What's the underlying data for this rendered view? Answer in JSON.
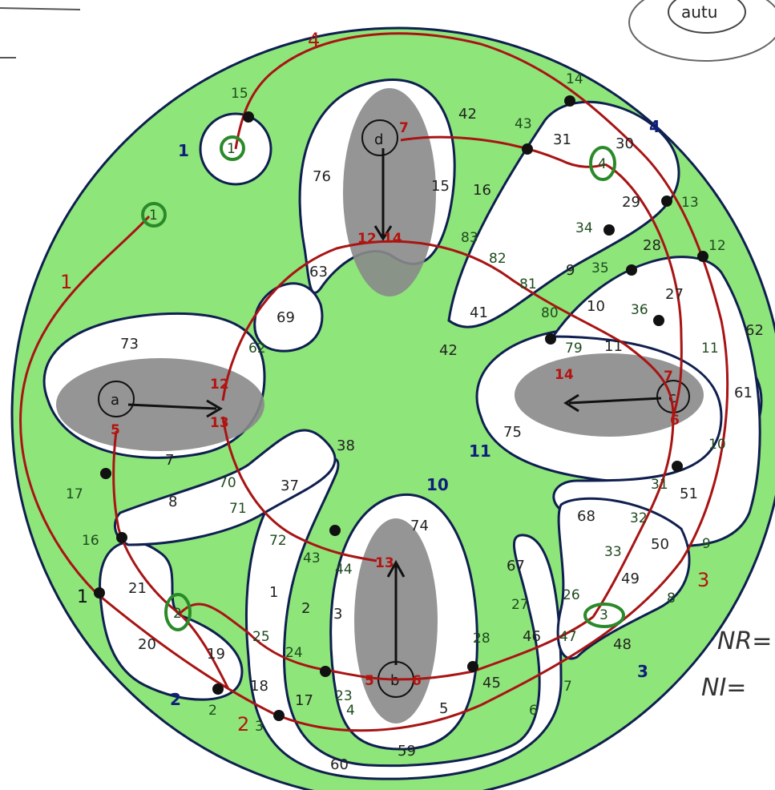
{
  "colors": {
    "disc_fill": "#8ee57a",
    "region_fill": "#ffffff",
    "shade_fill": "#8a8a8a",
    "blue_curve": "#0f1f4f",
    "red_curve": "#a81414",
    "green_ring": "#2a8a2a"
  },
  "corner": {
    "top_right_label": "autu",
    "right_text_1": "NR=",
    "right_text_2": "NI="
  },
  "punctures": {
    "a": "a",
    "b": "b",
    "c": "c",
    "d": "d"
  },
  "green_rings": [
    "1",
    "1",
    "2",
    "3",
    "4"
  ],
  "labels": {
    "blue": [
      "1",
      "2",
      "3",
      "4",
      "10",
      "11",
      "1",
      "2",
      "3",
      "4"
    ],
    "red_big": [
      "1",
      "2",
      "3",
      "4"
    ],
    "red_small": [
      "12",
      "13",
      "5",
      "5",
      "6",
      "6",
      "7",
      "7",
      "12",
      "13",
      "14",
      "14"
    ],
    "region": [
      "73",
      "76",
      "42",
      "16",
      "15",
      "31",
      "30",
      "29",
      "28",
      "27",
      "9",
      "10",
      "11",
      "75",
      "74",
      "1",
      "2",
      "3",
      "17",
      "18",
      "19",
      "20",
      "21",
      "7",
      "8",
      "38",
      "37",
      "69",
      "63",
      "62",
      "61",
      "51",
      "50",
      "49",
      "48",
      "46",
      "45",
      "5",
      "59",
      "60",
      "68",
      "67",
      "41",
      "42",
      "63"
    ],
    "green_small": [
      "15",
      "14",
      "13",
      "12",
      "11",
      "10",
      "9",
      "8",
      "7",
      "6",
      "5",
      "4",
      "3",
      "2",
      "42",
      "43",
      "83",
      "82",
      "81",
      "80",
      "79",
      "36",
      "35",
      "34",
      "31",
      "32",
      "33",
      "26",
      "27",
      "28",
      "24",
      "23",
      "25",
      "70",
      "71",
      "72",
      "43",
      "44",
      "17",
      "16",
      "62",
      "47",
      "2"
    ]
  }
}
